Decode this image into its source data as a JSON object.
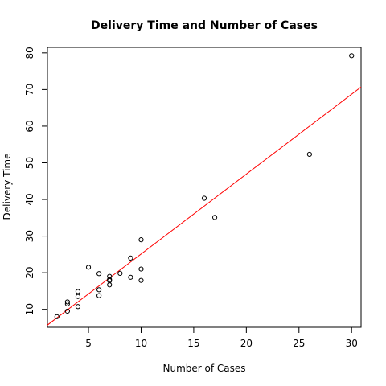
{
  "chart_data": {
    "type": "scatter",
    "title": "Delivery Time and Number of Cases",
    "xlabel": "Number of Cases",
    "ylabel": "Delivery Time",
    "xlim": [
      1.1,
      30.9
    ],
    "ylim": [
      5.1,
      81.5
    ],
    "xticks": [
      5,
      10,
      15,
      20,
      25,
      30
    ],
    "yticks": [
      10,
      20,
      30,
      40,
      50,
      60,
      70,
      80
    ],
    "grid": false,
    "legend": "none",
    "point_color": "#000000",
    "fit_line": {
      "color": "#ff0000",
      "intercept": 3.32,
      "slope": 2.18
    },
    "points": [
      {
        "x": 7,
        "y": 16.68
      },
      {
        "x": 3,
        "y": 11.5
      },
      {
        "x": 3,
        "y": 12.03
      },
      {
        "x": 4,
        "y": 14.88
      },
      {
        "x": 6,
        "y": 13.75
      },
      {
        "x": 7,
        "y": 18.11
      },
      {
        "x": 2,
        "y": 8.0
      },
      {
        "x": 7,
        "y": 17.83
      },
      {
        "x": 30,
        "y": 79.24
      },
      {
        "x": 5,
        "y": 21.5
      },
      {
        "x": 16,
        "y": 40.33
      },
      {
        "x": 10,
        "y": 21.0
      },
      {
        "x": 4,
        "y": 13.5
      },
      {
        "x": 6,
        "y": 19.75
      },
      {
        "x": 9,
        "y": 24.0
      },
      {
        "x": 10,
        "y": 29.0
      },
      {
        "x": 6,
        "y": 15.35
      },
      {
        "x": 7,
        "y": 19.0
      },
      {
        "x": 3,
        "y": 9.5
      },
      {
        "x": 17,
        "y": 35.1
      },
      {
        "x": 10,
        "y": 17.9
      },
      {
        "x": 26,
        "y": 52.32
      },
      {
        "x": 9,
        "y": 18.75
      },
      {
        "x": 8,
        "y": 19.83
      },
      {
        "x": 4,
        "y": 10.75
      }
    ]
  }
}
